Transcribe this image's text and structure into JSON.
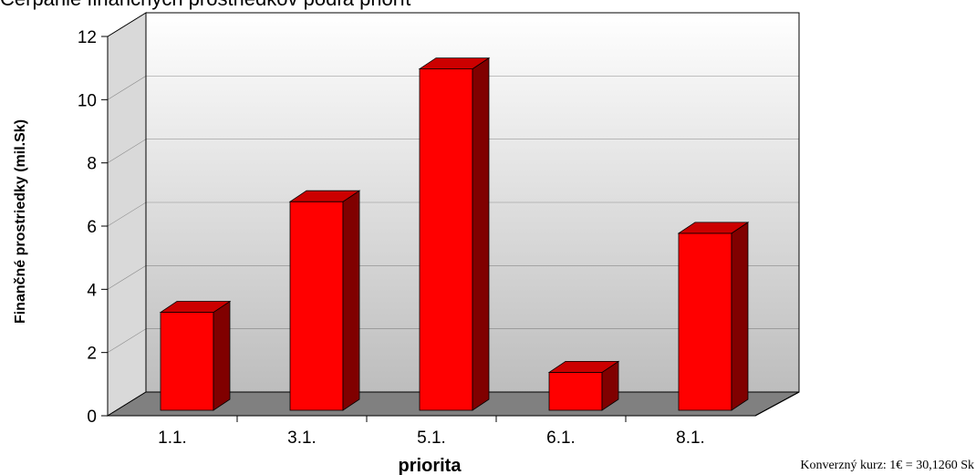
{
  "chart_data": {
    "type": "bar",
    "title": "Čerpanie finančných prostriedkov podľa priorít",
    "categories": [
      "1.1.",
      "3.1.",
      "5.1.",
      "6.1.",
      "8.1."
    ],
    "values": [
      3.1,
      6.6,
      10.8,
      1.2,
      5.6
    ],
    "xlabel": "priorita",
    "ylabel": "Finančné prostriedky (mil.Sk)",
    "ylim": [
      0,
      12
    ],
    "yticks": [
      "0",
      "2",
      "4",
      "6",
      "8",
      "10",
      "12"
    ],
    "grid": true,
    "bar_color": "#ff0000",
    "bar_side_color": "#800000",
    "bar_top_color": "#cc0000",
    "floor_color": "#808080",
    "legend": "none"
  },
  "footnote": "Konverzný kurz: 1€ = 30,1260 Sk"
}
